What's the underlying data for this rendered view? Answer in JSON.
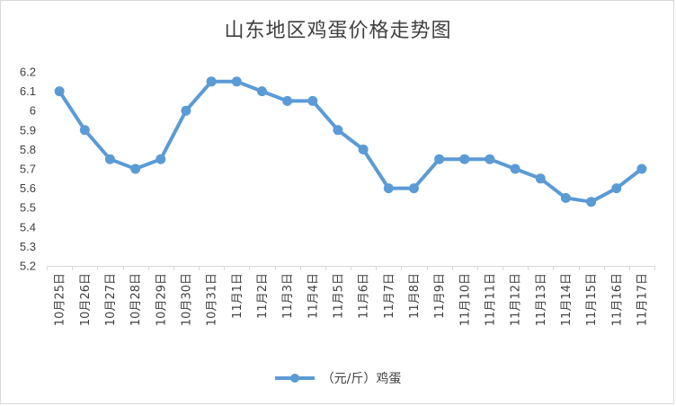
{
  "chart_data": {
    "type": "line",
    "title": "山东地区鸡蛋价格走势图",
    "xlabel": "",
    "ylabel": "",
    "categories": [
      "10月25日",
      "10月26日",
      "10月27日",
      "10月28日",
      "10月29日",
      "10月30日",
      "10月31日",
      "11月1日",
      "11月2日",
      "11月3日",
      "11月4日",
      "11月5日",
      "11月6日",
      "11月7日",
      "11月8日",
      "11月9日",
      "11月10日",
      "11月11日",
      "11月12日",
      "11月13日",
      "11月14日",
      "11月15日",
      "11月16日",
      "11月17日"
    ],
    "series": [
      {
        "name": "（元/斤）鸡蛋",
        "color": "#5b9bd5",
        "values": [
          6.1,
          5.9,
          5.75,
          5.7,
          5.75,
          6.0,
          6.15,
          6.15,
          6.1,
          6.05,
          6.05,
          5.9,
          5.8,
          5.6,
          5.6,
          5.75,
          5.75,
          5.75,
          5.7,
          5.65,
          5.55,
          5.53,
          5.6,
          5.7
        ]
      }
    ],
    "ylim": [
      5.2,
      6.2
    ],
    "yticks": [
      "6.2",
      "6.1",
      "6",
      "5.9",
      "5.8",
      "5.7",
      "5.6",
      "5.5",
      "5.4",
      "5.3",
      "5.2"
    ],
    "grid": false,
    "legend": "bottom"
  }
}
